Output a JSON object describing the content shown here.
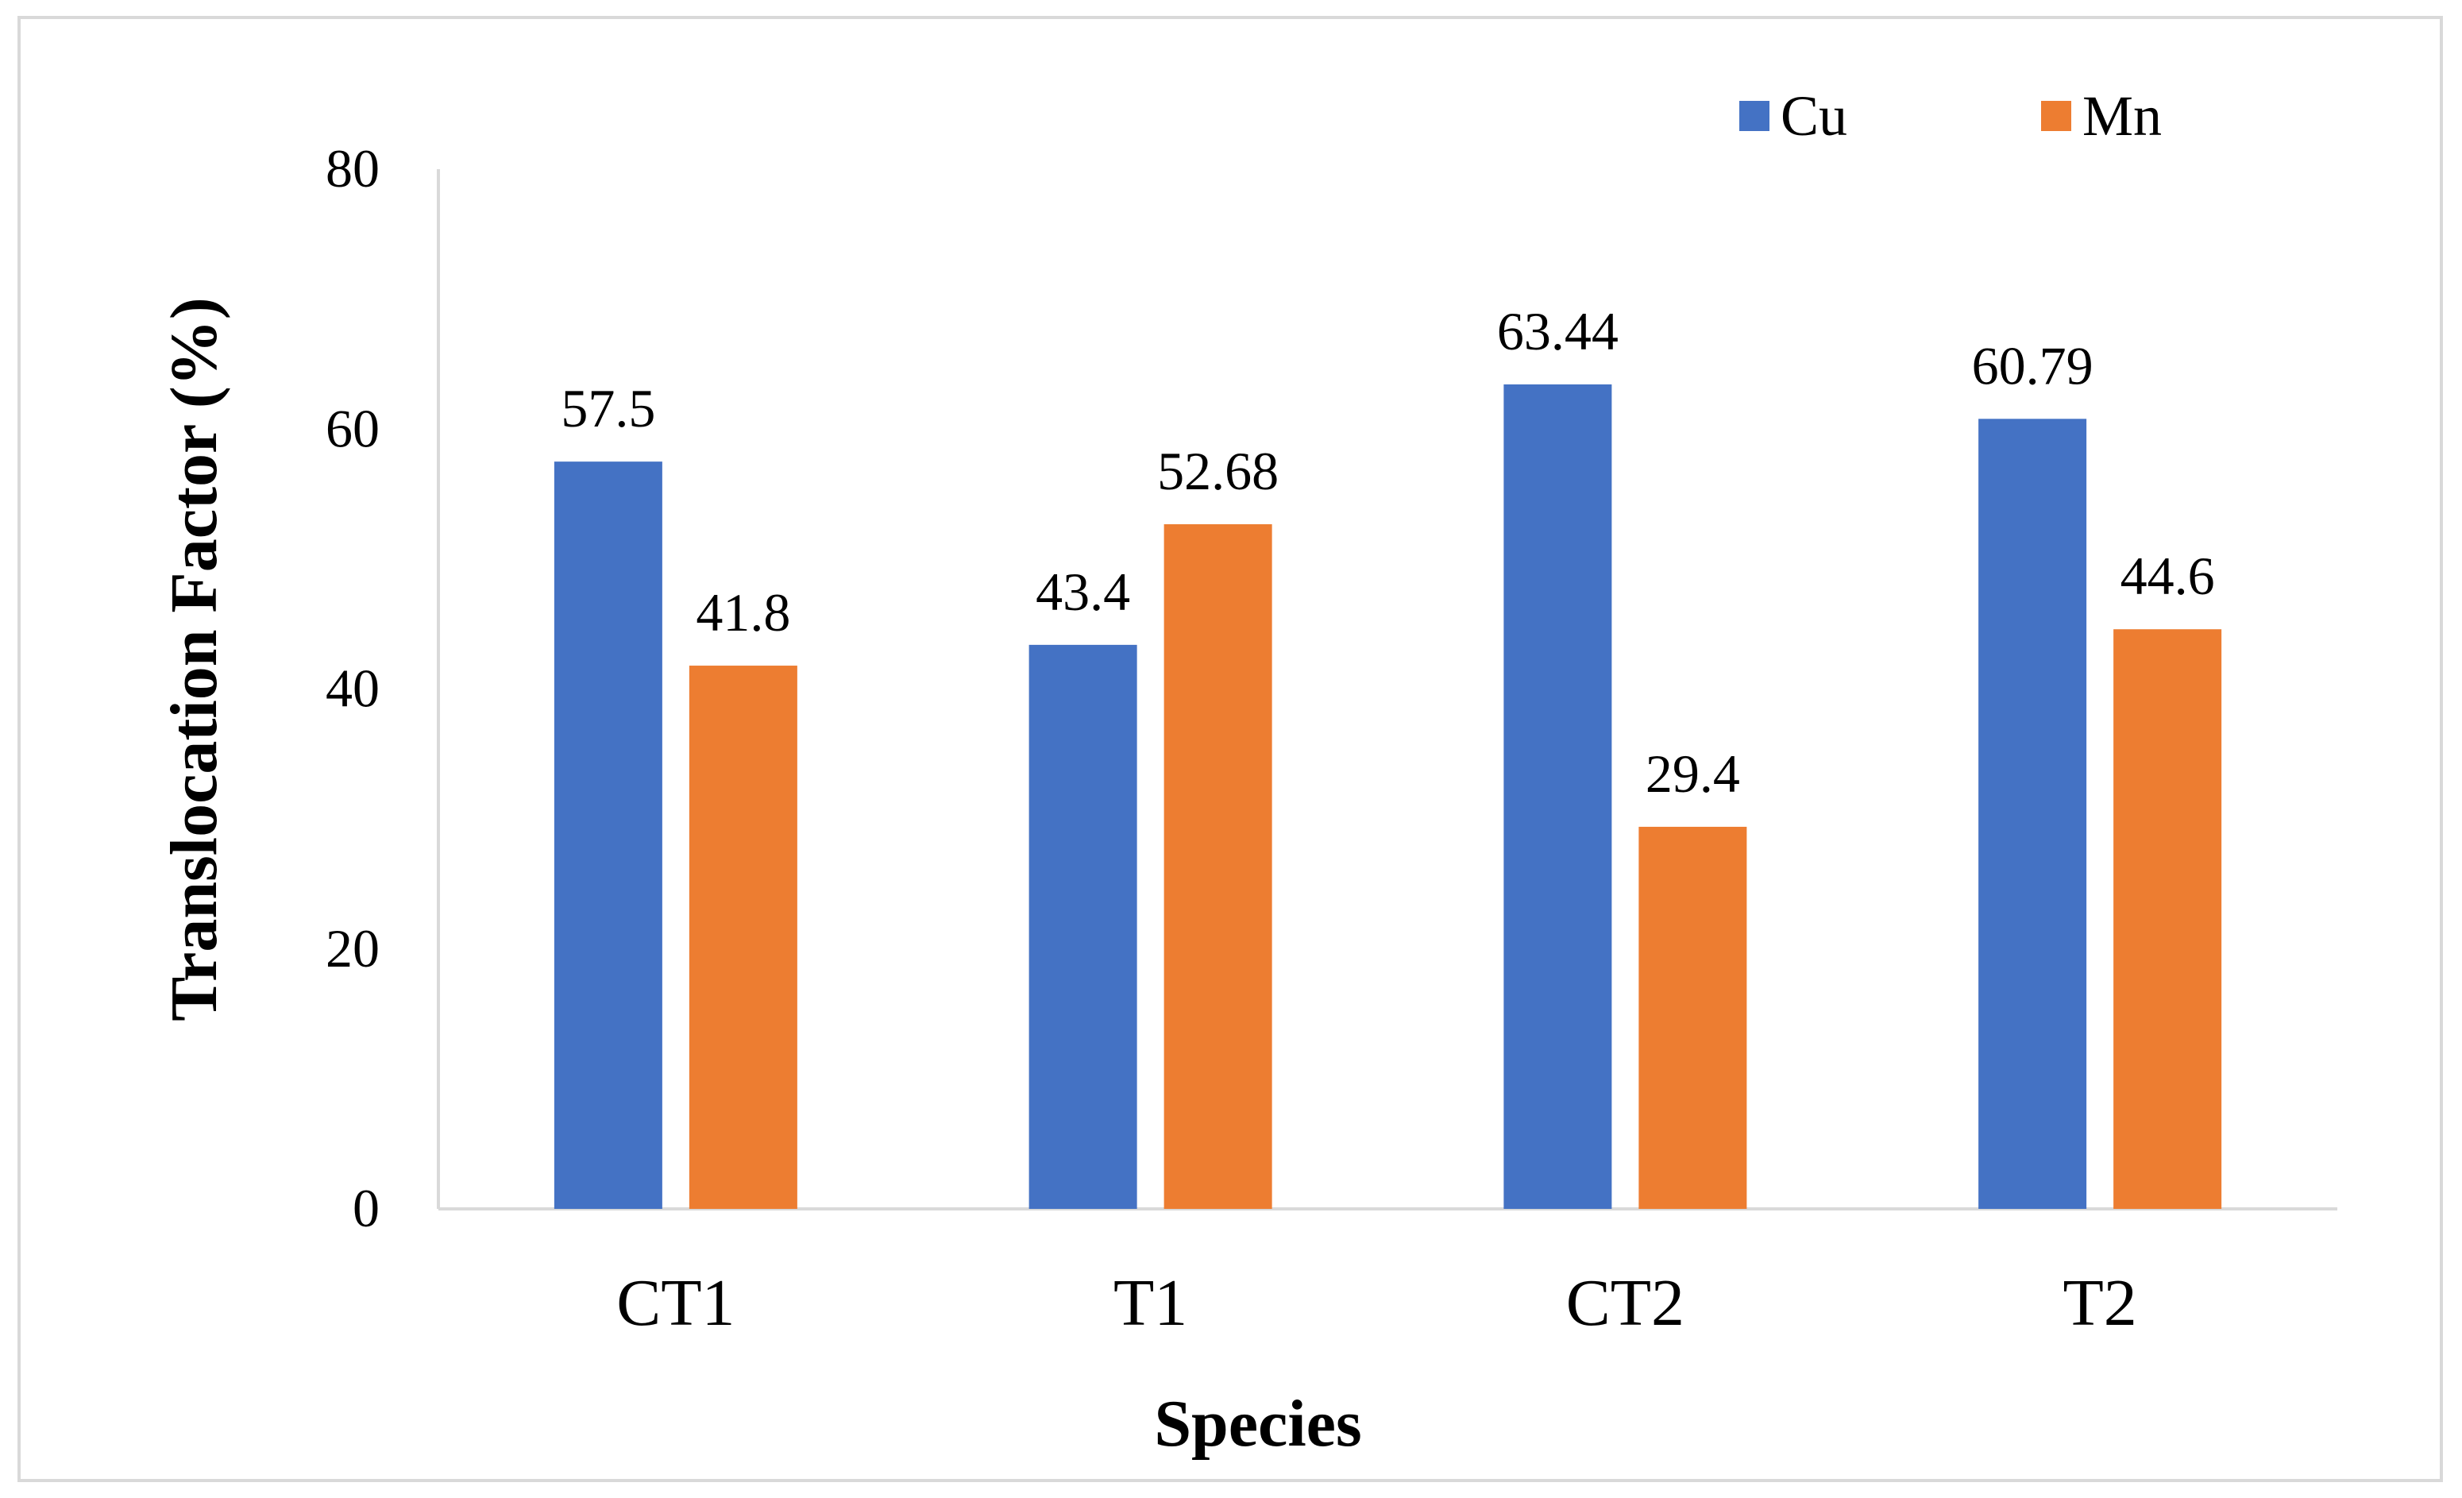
{
  "chart_data": {
    "type": "bar",
    "title": "",
    "xlabel": "Species",
    "ylabel": "Translocation Factor (%)",
    "categories": [
      "CT1",
      "T1",
      "CT2",
      "T2"
    ],
    "series": [
      {
        "name": "Cu",
        "color": "#4472c4",
        "values": [
          57.5,
          43.4,
          63.44,
          60.79
        ]
      },
      {
        "name": "Mn",
        "color": "#ed7d31",
        "values": [
          41.8,
          52.68,
          29.4,
          44.6
        ]
      }
    ],
    "data_labels": [
      [
        "57.5",
        "43.4",
        "63.44",
        "60.79"
      ],
      [
        "41.8",
        "52.68",
        "29.4",
        "44.6"
      ]
    ],
    "ylim": [
      0,
      80
    ],
    "yticks": [
      0,
      20,
      40,
      60,
      80
    ],
    "grid": false,
    "legend_position": "top-right"
  }
}
